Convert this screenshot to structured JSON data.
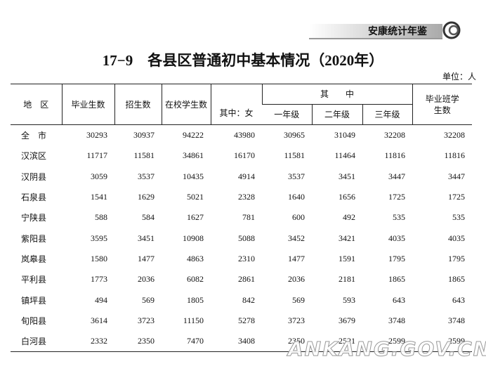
{
  "header": {
    "yearbook": "安康统计年鉴"
  },
  "title": "17−9　各县区普通初中基本情况（2020年）",
  "unit": "单位：人",
  "table": {
    "head": {
      "area": "地　区",
      "graduates": "毕业生数",
      "enrollment": "招生数",
      "in_school": "在校学生数",
      "female": "其中：女",
      "of_which": "其　　中",
      "grade1": "一年级",
      "grade2": "二年级",
      "grade3": "三年级",
      "grad_class": "毕业班学生数"
    },
    "rows": [
      [
        "全　市",
        30293,
        30937,
        94222,
        43980,
        30965,
        31049,
        32208,
        32208
      ],
      [
        "汉滨区",
        11717,
        11581,
        34861,
        16170,
        11581,
        11464,
        11816,
        11816
      ],
      [
        "汉阴县",
        3059,
        3537,
        10435,
        4914,
        3537,
        3451,
        3447,
        3447
      ],
      [
        "石泉县",
        1541,
        1629,
        5021,
        2328,
        1640,
        1656,
        1725,
        1725
      ],
      [
        "宁陕县",
        588,
        584,
        1627,
        781,
        600,
        492,
        535,
        535
      ],
      [
        "紫阳县",
        3595,
        3451,
        10908,
        5088,
        3452,
        3421,
        4035,
        4035
      ],
      [
        "岚皋县",
        1580,
        1477,
        4863,
        2310,
        1477,
        1591,
        1795,
        1795
      ],
      [
        "平利县",
        1773,
        2036,
        6082,
        2861,
        2036,
        2181,
        1865,
        1865
      ],
      [
        "镇坪县",
        494,
        569,
        1805,
        842,
        569,
        593,
        643,
        643
      ],
      [
        "旬阳县",
        3614,
        3723,
        11150,
        5278,
        3723,
        3679,
        3748,
        3748
      ],
      [
        "白河县",
        2332,
        2350,
        7470,
        3408,
        2350,
        2521,
        2599,
        2599
      ]
    ]
  },
  "watermark": "ANKANG.GOV.CN"
}
